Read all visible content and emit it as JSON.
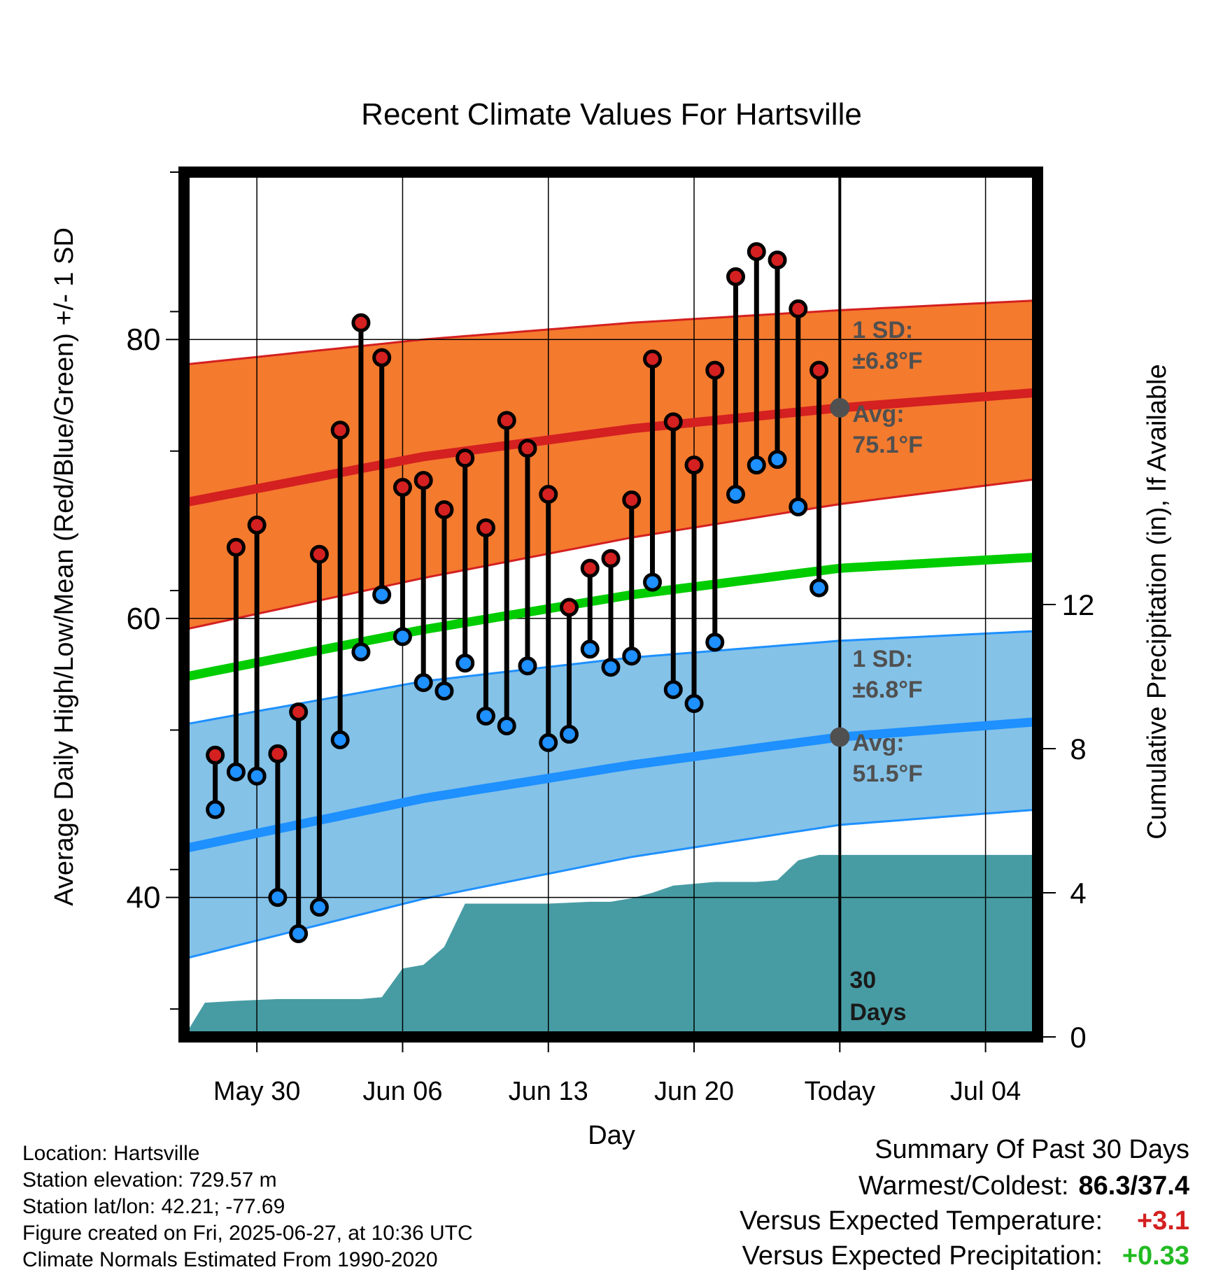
{
  "chart_data": {
    "type": "line",
    "title": "Recent Climate Values For Hartsville",
    "xlabel": "Day",
    "ylabel": "Average Daily High/Low/Mean (Red/Blue/Green) +/- 1 SD",
    "y2label": "Cumulative Precipitation (in), If Available",
    "x_tick_labels": [
      "May 30",
      "Jun 06",
      "Jun 13",
      "Jun 20",
      "Today",
      "Jul 04"
    ],
    "y_ticks": [
      40,
      60,
      80
    ],
    "y2_ticks": [
      0,
      4,
      8,
      12
    ],
    "ylim": [
      30,
      92
    ],
    "y2lim": [
      0,
      24
    ],
    "xlim_days": [
      -31.5,
      9.5
    ],
    "today_label": "30 Days",
    "days": [
      -30,
      -29,
      -28,
      -27,
      -26,
      -25,
      -24,
      -23,
      -22,
      -21,
      -20,
      -19,
      -18,
      -17,
      -16,
      -15,
      -14,
      -13,
      -12,
      -11,
      -10,
      -9,
      -8,
      -7,
      -6,
      -5,
      -4,
      -3,
      -2,
      -1
    ],
    "daily_high": [
      50.2,
      65.1,
      66.7,
      50.3,
      53.3,
      64.6,
      73.5,
      81.2,
      78.7,
      69.4,
      69.9,
      67.8,
      71.5,
      66.5,
      74.2,
      72.2,
      68.9,
      60.8,
      63.6,
      64.3,
      68.5,
      78.6,
      74.1,
      71.0,
      77.8,
      84.5,
      86.3,
      85.7,
      82.2,
      77.8
    ],
    "daily_low": [
      46.3,
      49.0,
      48.7,
      40.0,
      37.4,
      39.3,
      51.3,
      57.6,
      61.7,
      58.7,
      55.4,
      54.8,
      56.8,
      53.0,
      52.3,
      56.6,
      51.1,
      51.7,
      57.8,
      56.5,
      57.3,
      62.6,
      54.9,
      53.9,
      58.3,
      68.9,
      71.0,
      71.4,
      68.0,
      62.2
    ],
    "normals": {
      "anchor_days": [
        -31.5,
        -20,
        -10,
        0,
        9.5
      ],
      "high_avg": [
        68.3,
        71.6,
        73.6,
        75.1,
        76.2
      ],
      "high_upper": [
        78.2,
        80.0,
        81.2,
        82.1,
        82.8
      ],
      "high_lower": [
        59.2,
        62.9,
        65.8,
        68.2,
        70.0
      ],
      "mean_avg": [
        55.8,
        59.2,
        61.7,
        63.6,
        64.4
      ],
      "low_avg": [
        43.5,
        47.1,
        49.5,
        51.5,
        52.6
      ],
      "low_upper": [
        52.4,
        55.5,
        57.2,
        58.4,
        59.1
      ],
      "low_lower": [
        35.6,
        39.9,
        42.9,
        45.2,
        46.3
      ]
    },
    "precip_days": [
      -31.5,
      -30.5,
      -29,
      -27,
      -23,
      -22,
      -21,
      -20,
      -19,
      -18,
      -17,
      -16,
      -14,
      -12,
      -11,
      -10,
      -9,
      -8,
      -7,
      -6,
      -5,
      -4,
      -3,
      -2,
      -1,
      0,
      9.5
    ],
    "precip_cumulative": [
      0,
      0.95,
      1.0,
      1.05,
      1.05,
      1.1,
      1.9,
      2.0,
      2.5,
      3.7,
      3.7,
      3.7,
      3.7,
      3.75,
      3.75,
      3.85,
      4.0,
      4.2,
      4.25,
      4.3,
      4.3,
      4.3,
      4.35,
      4.9,
      5.05,
      5.05,
      5.05
    ],
    "high_annotation": {
      "sd_line1": "1 SD:",
      "sd_line2": "±6.8°F",
      "avg_line1": "Avg:",
      "avg_line2": "75.1°F",
      "avg_value": 75.1
    },
    "low_annotation": {
      "sd_line1": "1 SD:",
      "sd_line2": "±6.8°F",
      "avg_line1": "Avg:",
      "avg_line2": "51.5°F",
      "avg_value": 51.5
    },
    "colors": {
      "high_band": "#f47a2e",
      "high_line": "#d42020",
      "low_band": "#84c2e8",
      "low_line": "#1e90ff",
      "mean_line": "#00cc00",
      "precip": "#479ca4",
      "high_marker": "#d42020",
      "low_marker": "#1e90ff",
      "annotation": "#505050",
      "today_marker": "#505050"
    }
  },
  "info": {
    "location": "Location: Hartsville",
    "elevation": "Station elevation: 729.57 m",
    "latlon": "Station lat/lon: 42.21; -77.69",
    "created": "Figure created on Fri, 2025-06-27, at 10:36 UTC",
    "normals": "Climate Normals Estimated From 1990-2020"
  },
  "summary": {
    "header": "Summary Of Past 30 Days",
    "warm_cold_label": "Warmest/Coldest:",
    "warm_cold_value": "86.3/37.4",
    "temp_label": "Versus Expected Temperature:",
    "temp_value": "+3.1",
    "temp_color": "#d42020",
    "precip_label": "Versus Expected Precipitation:",
    "precip_value": "+0.33",
    "precip_color": "#22bb22"
  }
}
